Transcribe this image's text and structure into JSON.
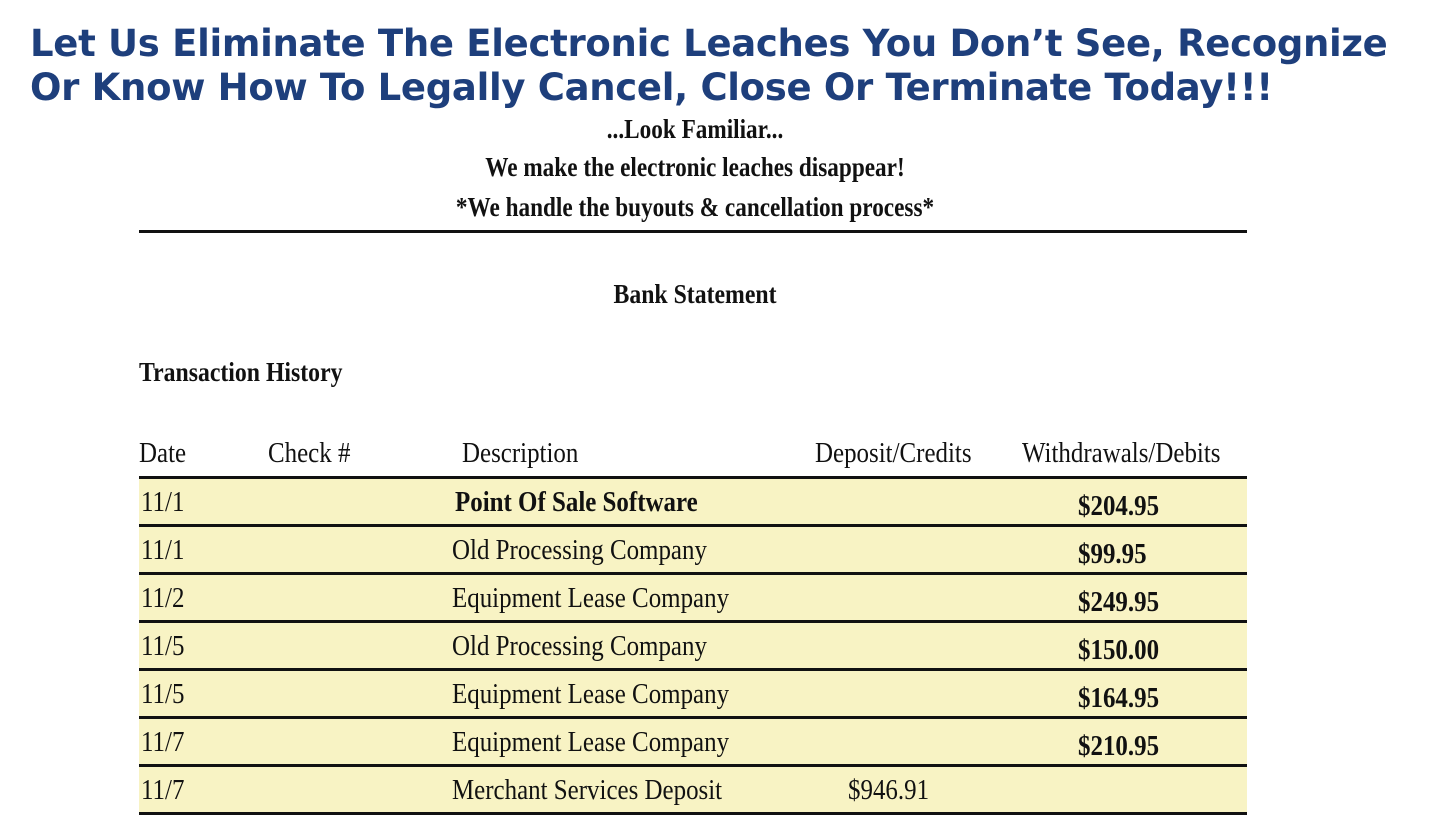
{
  "headline": "Let Us Eliminate The Electronic Leaches You Don’t See, Recognize Or Know How To Legally Cancel, Close Or Terminate Today!!!",
  "taglines": [
    "...Look Familiar...",
    "We make the electronic leaches disappear!",
    "*We handle the buyouts & cancellation process*"
  ],
  "statement_title": "Bank Statement",
  "history_title": "Transaction History",
  "table": {
    "headers": {
      "date": "Date",
      "check": "Check #",
      "description": "Description",
      "deposits": "Deposit/Credits",
      "withdrawals": "Withdrawals/Debits"
    },
    "rows": [
      {
        "date": "11/1",
        "check": "",
        "description": "Point Of Sale Software",
        "deposit": "",
        "withdrawal": "$204.95"
      },
      {
        "date": "11/1",
        "check": "",
        "description": "Old Processing Company",
        "deposit": "",
        "withdrawal": "$99.95"
      },
      {
        "date": "11/2",
        "check": "",
        "description": "Equipment Lease Company",
        "deposit": "",
        "withdrawal": "$249.95"
      },
      {
        "date": "11/5",
        "check": "",
        "description": "Old Processing Company",
        "deposit": "",
        "withdrawal": "$150.00"
      },
      {
        "date": "11/5",
        "check": "",
        "description": "Equipment Lease Company",
        "deposit": "",
        "withdrawal": "$164.95"
      },
      {
        "date": "11/7",
        "check": "",
        "description": "Equipment Lease Company",
        "deposit": "",
        "withdrawal": "$210.95"
      },
      {
        "date": "11/7",
        "check": "",
        "description": "Merchant Services Deposit",
        "deposit": "$946.91",
        "withdrawal": ""
      }
    ]
  }
}
